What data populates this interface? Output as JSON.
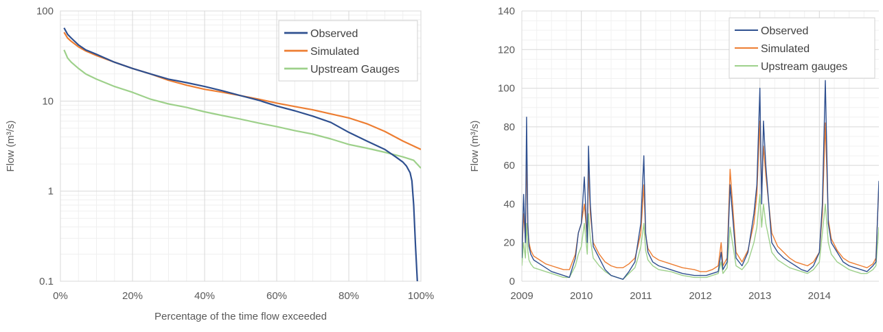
{
  "chart_data": [
    {
      "type": "line",
      "title": "",
      "xlabel": "Percentage of the time flow exceeded",
      "ylabel": "Flow (m³/s)",
      "yscale": "log",
      "xlim": [
        0,
        100
      ],
      "ylim": [
        0.1,
        100
      ],
      "x_ticks": [
        "0%",
        "20%",
        "40%",
        "60%",
        "80%",
        "100%"
      ],
      "x_tick_values": [
        0,
        20,
        40,
        60,
        80,
        100
      ],
      "y_ticks": [
        "0.1",
        "1",
        "10",
        "100"
      ],
      "y_tick_values": [
        0.1,
        1,
        10,
        100
      ],
      "grid": true,
      "legend_position": "top-right",
      "series": [
        {
          "name": "Observed",
          "color": "#2e4f8f",
          "x": [
            1,
            2,
            3,
            5,
            7,
            10,
            15,
            20,
            25,
            30,
            35,
            40,
            45,
            50,
            55,
            60,
            65,
            70,
            75,
            80,
            85,
            90,
            93,
            95,
            96,
            97,
            97.5,
            98,
            98.5,
            99
          ],
          "y": [
            65,
            55,
            50,
            42,
            37,
            33,
            27,
            23,
            20,
            17.5,
            16,
            14.5,
            13,
            11.5,
            10.2,
            8.8,
            7.8,
            6.8,
            5.8,
            4.5,
            3.6,
            2.9,
            2.4,
            2.1,
            1.9,
            1.6,
            1.3,
            0.7,
            0.25,
            0.1
          ]
        },
        {
          "name": "Simulated",
          "color": "#ed7d31",
          "x": [
            1,
            2,
            3,
            5,
            7,
            10,
            15,
            20,
            25,
            30,
            35,
            40,
            45,
            50,
            55,
            60,
            65,
            70,
            75,
            80,
            85,
            90,
            95,
            100
          ],
          "y": [
            58,
            50,
            46,
            40,
            36,
            32,
            27,
            23,
            20,
            17,
            15,
            13.5,
            12.5,
            11.5,
            10.5,
            9.5,
            8.7,
            8,
            7.2,
            6.5,
            5.6,
            4.6,
            3.6,
            2.9
          ]
        },
        {
          "name": "Upstream Gauges",
          "color": "#9dd08a",
          "x": [
            1,
            2,
            3,
            5,
            7,
            10,
            15,
            20,
            25,
            30,
            35,
            40,
            45,
            50,
            55,
            60,
            65,
            70,
            75,
            80,
            85,
            90,
            95,
            98,
            100
          ],
          "y": [
            37,
            30,
            27,
            23,
            20,
            17.5,
            14.5,
            12.5,
            10.5,
            9.3,
            8.5,
            7.6,
            6.9,
            6.3,
            5.7,
            5.2,
            4.7,
            4.3,
            3.8,
            3.3,
            3.0,
            2.7,
            2.4,
            2.2,
            1.8
          ]
        }
      ]
    },
    {
      "type": "line",
      "title": "",
      "xlabel": "",
      "ylabel": "Flow (m³/s)",
      "xlim": [
        2009,
        2015
      ],
      "ylim": [
        0,
        140
      ],
      "x_ticks": [
        "2009",
        "2010",
        "2011",
        "2012",
        "2013",
        "2014"
      ],
      "x_tick_values": [
        2009,
        2010,
        2011,
        2012,
        2013,
        2014
      ],
      "y_ticks": [
        "0",
        "20",
        "40",
        "60",
        "80",
        "100",
        "120",
        "140"
      ],
      "y_tick_values": [
        0,
        20,
        40,
        60,
        80,
        100,
        120,
        140
      ],
      "grid": true,
      "legend_position": "top-right",
      "series": [
        {
          "name": "Observed",
          "color": "#2e4f8f",
          "x": [
            2009.0,
            2009.03,
            2009.06,
            2009.08,
            2009.1,
            2009.12,
            2009.15,
            2009.2,
            2009.3,
            2009.4,
            2009.5,
            2009.6,
            2009.7,
            2009.8,
            2009.9,
            2009.95,
            2010.0,
            2010.05,
            2010.1,
            2010.12,
            2010.15,
            2010.2,
            2010.3,
            2010.4,
            2010.5,
            2010.6,
            2010.7,
            2010.8,
            2010.9,
            2010.95,
            2011.0,
            2011.05,
            2011.08,
            2011.12,
            2011.2,
            2011.3,
            2011.5,
            2011.7,
            2011.9,
            2012.0,
            2012.1,
            2012.2,
            2012.3,
            2012.35,
            2012.38,
            2012.45,
            2012.5,
            2012.6,
            2012.7,
            2012.8,
            2012.9,
            2012.95,
            2013.0,
            2013.03,
            2013.06,
            2013.1,
            2013.2,
            2013.3,
            2013.4,
            2013.5,
            2013.6,
            2013.7,
            2013.8,
            2013.9,
            2014.0,
            2014.05,
            2014.1,
            2014.15,
            2014.2,
            2014.3,
            2014.4,
            2014.5,
            2014.6,
            2014.7,
            2014.8,
            2014.9,
            2014.95,
            2015.0
          ],
          "y": [
            12,
            45,
            20,
            85,
            30,
            18,
            14,
            11,
            9,
            7,
            5,
            4,
            3,
            2,
            12,
            25,
            30,
            54,
            20,
            70,
            40,
            18,
            12,
            6,
            3,
            2,
            1,
            5,
            10,
            20,
            30,
            65,
            25,
            15,
            10,
            8,
            6,
            4,
            3,
            3,
            3,
            4,
            5,
            15,
            6,
            10,
            50,
            12,
            8,
            15,
            35,
            50,
            100,
            40,
            83,
            60,
            20,
            15,
            12,
            10,
            8,
            6,
            5,
            8,
            15,
            40,
            104,
            30,
            20,
            15,
            10,
            8,
            7,
            6,
            5,
            8,
            10,
            52
          ]
        },
        {
          "name": "Simulated",
          "color": "#ed7d31",
          "x": [
            2009.0,
            2009.03,
            2009.06,
            2009.08,
            2009.1,
            2009.12,
            2009.15,
            2009.2,
            2009.3,
            2009.4,
            2009.5,
            2009.6,
            2009.7,
            2009.8,
            2009.9,
            2009.95,
            2010.0,
            2010.05,
            2010.1,
            2010.12,
            2010.15,
            2010.2,
            2010.3,
            2010.4,
            2010.5,
            2010.6,
            2010.7,
            2010.8,
            2010.9,
            2010.95,
            2011.0,
            2011.05,
            2011.08,
            2011.12,
            2011.2,
            2011.3,
            2011.5,
            2011.7,
            2011.9,
            2012.0,
            2012.1,
            2012.2,
            2012.3,
            2012.35,
            2012.38,
            2012.45,
            2012.5,
            2012.6,
            2012.7,
            2012.8,
            2012.9,
            2012.95,
            2013.0,
            2013.03,
            2013.06,
            2013.1,
            2013.2,
            2013.3,
            2013.4,
            2013.5,
            2013.6,
            2013.7,
            2013.8,
            2013.9,
            2014.0,
            2014.05,
            2014.1,
            2014.15,
            2014.2,
            2014.3,
            2014.4,
            2014.5,
            2014.6,
            2014.7,
            2014.8,
            2014.9,
            2014.95,
            2015.0
          ],
          "y": [
            14,
            35,
            22,
            68,
            28,
            20,
            16,
            13,
            11,
            9,
            8,
            7,
            6,
            6,
            14,
            25,
            30,
            40,
            22,
            58,
            35,
            20,
            14,
            10,
            8,
            7,
            7,
            9,
            12,
            18,
            25,
            50,
            24,
            17,
            13,
            11,
            9,
            7,
            6,
            5,
            5,
            6,
            8,
            20,
            8,
            12,
            58,
            15,
            10,
            16,
            30,
            45,
            83,
            45,
            70,
            55,
            25,
            18,
            15,
            12,
            10,
            9,
            8,
            10,
            15,
            35,
            82,
            32,
            22,
            16,
            12,
            10,
            9,
            8,
            7,
            9,
            12,
            50
          ]
        },
        {
          "name": "Upstream gauges",
          "color": "#9dd08a",
          "x": [
            2009.0,
            2009.03,
            2009.06,
            2009.08,
            2009.1,
            2009.12,
            2009.15,
            2009.2,
            2009.3,
            2009.4,
            2009.5,
            2009.6,
            2009.7,
            2009.8,
            2009.9,
            2009.95,
            2010.0,
            2010.05,
            2010.1,
            2010.12,
            2010.15,
            2010.2,
            2010.3,
            2010.4,
            2010.5,
            2010.6,
            2010.7,
            2010.8,
            2010.9,
            2010.95,
            2011.0,
            2011.05,
            2011.08,
            2011.12,
            2011.2,
            2011.3,
            2011.5,
            2011.7,
            2011.9,
            2012.0,
            2012.1,
            2012.2,
            2012.3,
            2012.35,
            2012.38,
            2012.45,
            2012.5,
            2012.6,
            2012.7,
            2012.8,
            2012.9,
            2012.95,
            2013.0,
            2013.03,
            2013.06,
            2013.1,
            2013.2,
            2013.3,
            2013.4,
            2013.5,
            2013.6,
            2013.7,
            2013.8,
            2013.9,
            2014.0,
            2014.05,
            2014.1,
            2014.15,
            2014.2,
            2014.3,
            2014.4,
            2014.5,
            2014.6,
            2014.7,
            2014.8,
            2014.9,
            2014.95,
            2015.0
          ],
          "y": [
            8,
            20,
            12,
            30,
            16,
            11,
            9,
            7,
            6,
            5,
            4,
            3,
            2,
            2,
            8,
            14,
            18,
            30,
            14,
            35,
            22,
            12,
            8,
            5,
            3,
            2,
            1,
            4,
            7,
            12,
            18,
            30,
            16,
            11,
            8,
            6,
            5,
            3,
            2,
            2,
            2,
            3,
            4,
            10,
            4,
            7,
            28,
            8,
            6,
            10,
            20,
            28,
            45,
            28,
            40,
            30,
            15,
            11,
            9,
            7,
            6,
            5,
            4,
            6,
            10,
            25,
            40,
            20,
            14,
            10,
            8,
            6,
            5,
            4,
            4,
            6,
            8,
            28
          ]
        }
      ]
    }
  ]
}
